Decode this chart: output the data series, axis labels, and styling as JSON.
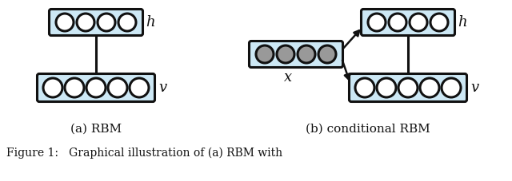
{
  "bg_color": "#ffffff",
  "box_fill": "#cde8f5",
  "box_edge": "#111111",
  "circle_fill_white": "#ffffff",
  "circle_fill_gray": "#999999",
  "circle_edge": "#111111",
  "arrow_color": "#111111",
  "text_color": "#111111",
  "label_a": "(a) RBM",
  "label_b": "(b) conditional RBM",
  "caption": "Figure 1:   Graphical illustration of (a) RBM with",
  "h_label": "h",
  "v_label": "v",
  "x_label": "x",
  "figsize": [
    6.4,
    2.27
  ],
  "dpi": 100
}
